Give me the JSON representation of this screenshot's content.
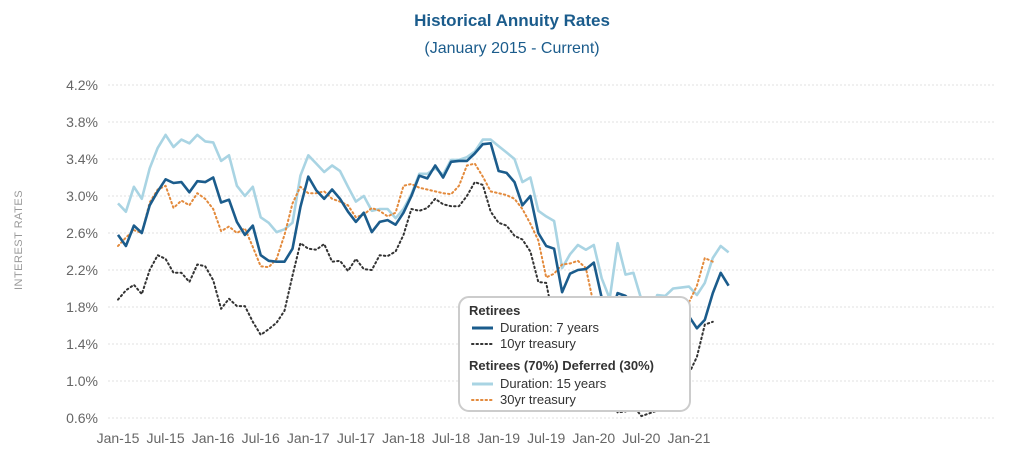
{
  "chart_data": {
    "type": "line",
    "title": "Historical Annuity Rates",
    "subtitle": "(January 2015 - Current)",
    "ylabel": "INTEREST RATES",
    "xlabel": "",
    "ylim": [
      0.6,
      4.2
    ],
    "yticks": [
      0.6,
      1.0,
      1.4,
      1.8,
      2.2,
      2.6,
      3.0,
      3.4,
      3.8,
      4.2
    ],
    "ytick_labels": [
      "0.6%",
      "1.0%",
      "1.4%",
      "1.8%",
      "2.2%",
      "2.6%",
      "3.0%",
      "3.4%",
      "3.8%",
      "4.2%"
    ],
    "x_start": "2015-01",
    "x_end": "2021-06",
    "xtick_labels": [
      "Jan-15",
      "Jul-15",
      "Jan-16",
      "Jul-16",
      "Jan-17",
      "Jul-17",
      "Jan-18",
      "Jul-18",
      "Jan-19",
      "Jul-19",
      "Jan-20",
      "Jul-20",
      "Jan-21"
    ],
    "grid": true,
    "legend_position": "bottom-center",
    "legend_groups": [
      {
        "title": "Retirees",
        "series": [
          "Duration: 7 years",
          "10yr treasury"
        ]
      },
      {
        "title": "Retirees (70%) Deferred (30%)",
        "series": [
          "Duration: 15 years",
          "30yr treasury"
        ]
      }
    ],
    "series": [
      {
        "name": "Duration: 7 years",
        "color": "#1b5c8c",
        "style": "solid",
        "values": [
          2.58,
          2.46,
          2.68,
          2.6,
          2.9,
          3.05,
          3.18,
          3.14,
          3.15,
          3.04,
          3.16,
          3.15,
          3.2,
          2.93,
          2.96,
          2.72,
          2.58,
          2.68,
          2.36,
          2.3,
          2.29,
          2.29,
          2.43,
          2.88,
          3.21,
          3.06,
          2.97,
          3.07,
          2.97,
          2.83,
          2.72,
          2.82,
          2.61,
          2.72,
          2.74,
          2.69,
          2.82,
          3.0,
          3.22,
          3.19,
          3.33,
          3.2,
          3.37,
          3.38,
          3.38,
          3.46,
          3.56,
          3.57,
          3.27,
          3.25,
          3.15,
          2.9,
          3.0,
          2.6,
          2.46,
          2.43,
          1.96,
          2.16,
          2.2,
          2.21,
          2.28,
          1.9,
          1.65,
          1.95,
          1.92,
          1.84,
          1.49,
          1.46,
          1.6,
          1.6,
          1.64,
          1.67,
          1.7,
          1.57,
          1.66,
          1.95,
          2.17,
          2.03
        ]
      },
      {
        "name": "10yr treasury",
        "color": "#333333",
        "style": "dotted",
        "values": [
          1.88,
          1.98,
          2.04,
          1.94,
          2.2,
          2.36,
          2.32,
          2.17,
          2.17,
          2.07,
          2.26,
          2.24,
          2.09,
          1.78,
          1.89,
          1.81,
          1.81,
          1.64,
          1.5,
          1.56,
          1.63,
          1.76,
          2.14,
          2.49,
          2.43,
          2.42,
          2.48,
          2.29,
          2.3,
          2.19,
          2.32,
          2.21,
          2.2,
          2.36,
          2.35,
          2.4,
          2.58,
          2.86,
          2.84,
          2.87,
          2.97,
          2.91,
          2.89,
          2.89,
          3.0,
          3.15,
          3.12,
          2.83,
          2.71,
          2.68,
          2.57,
          2.53,
          2.4,
          2.07,
          2.06,
          1.63,
          1.7,
          1.7,
          1.81,
          1.86,
          1.76,
          1.51,
          0.87,
          0.66,
          0.67,
          0.73,
          0.62,
          0.65,
          0.68,
          0.79,
          0.87,
          0.93,
          1.08,
          1.26,
          1.61,
          1.64
        ]
      },
      {
        "name": "Duration: 15 years",
        "color": "#a9d4e3",
        "style": "solid",
        "values": [
          2.92,
          2.83,
          3.1,
          2.97,
          3.3,
          3.52,
          3.66,
          3.53,
          3.61,
          3.57,
          3.66,
          3.59,
          3.58,
          3.38,
          3.44,
          3.11,
          3.0,
          3.1,
          2.77,
          2.71,
          2.61,
          2.64,
          2.71,
          3.22,
          3.44,
          3.35,
          3.26,
          3.33,
          3.27,
          3.1,
          2.94,
          3.0,
          2.84,
          2.86,
          2.86,
          2.76,
          2.86,
          3.02,
          3.24,
          3.24,
          3.3,
          3.23,
          3.39,
          3.39,
          3.42,
          3.48,
          3.61,
          3.61,
          3.54,
          3.47,
          3.4,
          3.15,
          3.2,
          2.84,
          2.78,
          2.73,
          2.22,
          2.37,
          2.47,
          2.42,
          2.47,
          2.11,
          1.89,
          2.49,
          2.15,
          2.17,
          1.88,
          1.67,
          1.93,
          1.92,
          2.0,
          2.01,
          2.02,
          1.93,
          2.06,
          2.33,
          2.46,
          2.39
        ]
      },
      {
        "name": "30yr treasury",
        "color": "#e38a3c",
        "style": "dotted",
        "values": [
          2.46,
          2.55,
          2.63,
          2.6,
          2.93,
          3.07,
          3.11,
          2.87,
          2.95,
          2.9,
          3.03,
          2.97,
          2.86,
          2.62,
          2.67,
          2.6,
          2.65,
          2.45,
          2.24,
          2.23,
          2.32,
          2.58,
          2.92,
          3.1,
          3.03,
          3.03,
          3.05,
          2.97,
          2.94,
          2.9,
          2.77,
          2.8,
          2.87,
          2.84,
          2.78,
          2.82,
          3.11,
          3.13,
          3.09,
          3.07,
          3.05,
          3.03,
          3.02,
          3.11,
          3.33,
          3.35,
          3.21,
          3.05,
          3.03,
          3.01,
          2.97,
          2.86,
          2.7,
          2.52,
          2.12,
          2.16,
          2.26,
          2.27,
          2.3,
          2.22,
          1.82,
          1.28,
          1.34,
          1.46,
          1.52,
          1.32,
          1.4,
          1.45,
          1.57,
          1.64,
          1.66,
          1.7,
          1.85,
          2.03,
          2.33,
          2.29
        ]
      }
    ]
  }
}
